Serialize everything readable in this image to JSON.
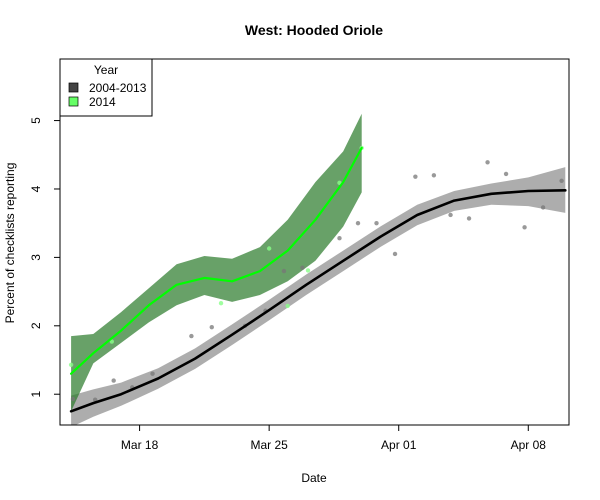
{
  "chart_data": {
    "type": "line",
    "title": "West: Hooded Oriole",
    "xlabel": "Date",
    "ylabel": "Percent of checklists reporting",
    "x_tick_labels": [
      "Mar 18",
      "Mar 25",
      "Apr 01",
      "Apr 08"
    ],
    "x_tick_days": [
      18,
      25,
      32,
      39
    ],
    "xlim": [
      13.7,
      41.2
    ],
    "ylim": [
      0.55,
      5.9
    ],
    "y_ticks": [
      1,
      2,
      3,
      4,
      5
    ],
    "legend": {
      "title": "Year",
      "position": "top-left"
    },
    "series": [
      {
        "name": "2004-2013",
        "color": "#000000",
        "band_color": "#999999",
        "smooth_x": [
          14.3,
          15.5,
          17.0,
          19.0,
          21.0,
          23.0,
          25.0,
          27.0,
          29.0,
          31.0,
          33.0,
          35.0,
          37.0,
          39.0,
          41.0
        ],
        "smooth_y": [
          0.75,
          0.87,
          1.0,
          1.23,
          1.52,
          1.87,
          2.23,
          2.6,
          2.95,
          3.3,
          3.62,
          3.83,
          3.93,
          3.97,
          3.98
        ],
        "lower_y": [
          0.52,
          0.67,
          0.83,
          1.08,
          1.37,
          1.72,
          2.08,
          2.45,
          2.8,
          3.15,
          3.47,
          3.68,
          3.77,
          3.75,
          3.65
        ],
        "upper_y": [
          0.98,
          1.07,
          1.17,
          1.38,
          1.67,
          2.02,
          2.38,
          2.75,
          3.1,
          3.45,
          3.77,
          3.97,
          4.08,
          4.17,
          4.32
        ],
        "points_x": [
          14.4,
          15.6,
          16.6,
          17.6,
          18.7,
          20.8,
          21.9,
          23.7,
          24.8,
          25.8,
          26.8,
          28.8,
          29.8,
          30.8,
          31.8,
          32.9,
          33.9,
          34.8,
          35.8,
          36.8,
          37.8,
          38.8,
          39.8,
          40.8
        ],
        "points_y": [
          0.93,
          0.92,
          1.2,
          1.1,
          1.3,
          1.85,
          1.98,
          2.0,
          2.22,
          2.8,
          2.85,
          3.28,
          3.5,
          3.5,
          3.05,
          4.18,
          4.2,
          3.62,
          3.57,
          4.39,
          4.22,
          3.44,
          3.73,
          4.12
        ]
      },
      {
        "name": "2014",
        "color": "#00ff00",
        "band_color": "#2e7d2e",
        "smooth_x": [
          14.3,
          15.5,
          17.0,
          18.5,
          20.0,
          21.5,
          23.0,
          24.5,
          26.0,
          27.5,
          29.0,
          30.0
        ],
        "smooth_y": [
          1.3,
          1.6,
          1.93,
          2.3,
          2.6,
          2.7,
          2.65,
          2.8,
          3.1,
          3.55,
          4.1,
          4.6
        ],
        "lower_y": [
          0.75,
          1.45,
          1.75,
          2.05,
          2.3,
          2.45,
          2.35,
          2.45,
          2.65,
          2.95,
          3.45,
          3.95
        ],
        "upper_y": [
          1.85,
          1.88,
          2.2,
          2.55,
          2.9,
          3.02,
          2.98,
          3.15,
          3.55,
          4.1,
          4.55,
          5.1
        ],
        "points_x": [
          14.3,
          16.5,
          22.4,
          25.0,
          26.0,
          27.1,
          28.8,
          30.0
        ],
        "points_y": [
          1.43,
          1.77,
          2.33,
          3.13,
          2.29,
          2.81,
          4.09,
          4.6
        ]
      }
    ]
  }
}
